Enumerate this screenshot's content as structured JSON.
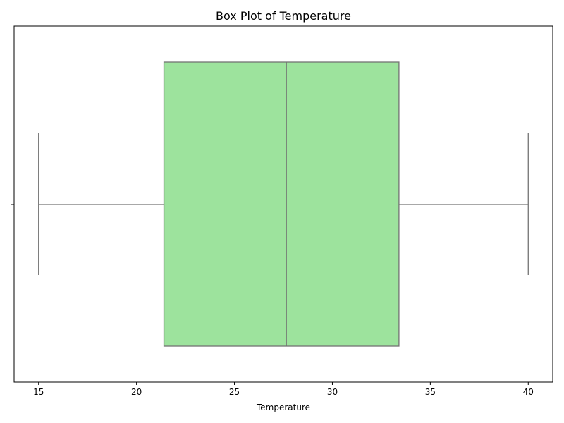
{
  "chart_data": {
    "type": "box",
    "title": "Box Plot of Temperature",
    "xlabel": "Temperature",
    "ylabel": "",
    "orientation": "horizontal",
    "xlim": [
      13.75,
      41.25
    ],
    "x_ticks": [
      15,
      20,
      25,
      30,
      35,
      40
    ],
    "x_tick_labels": [
      "15",
      "20",
      "25",
      "30",
      "35",
      "40"
    ],
    "box": {
      "min": 15,
      "q1": 21.4,
      "median": 27.65,
      "q3": 33.4,
      "max": 40
    },
    "colors": {
      "box_fill": "#9de39d",
      "box_stroke": "#737373",
      "axis": "#000000"
    },
    "grid": false,
    "legend": "none"
  }
}
